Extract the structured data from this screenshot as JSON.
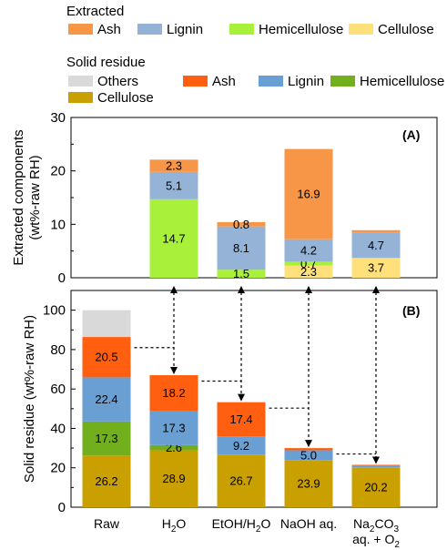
{
  "legends": [
    {
      "title": "Extracted",
      "items": [
        {
          "label": "Ash",
          "color": "#F79646"
        },
        {
          "label": "Lignin",
          "color": "#95B3D7"
        },
        {
          "label": "Hemicellulose",
          "color": "#A9F03A"
        },
        {
          "label": "Cellulose",
          "color": "#FFE07A"
        }
      ]
    },
    {
      "title": "Solid residue",
      "items": [
        {
          "label": "Others",
          "color": "#D9D9D9"
        },
        {
          "label": "Ash",
          "color": "#FF5F0F"
        },
        {
          "label": "Lignin",
          "color": "#6A9FD3"
        },
        {
          "label": "Hemicellulose",
          "color": "#71AF1C"
        },
        {
          "label": "Cellulose",
          "color": "#C9A000"
        }
      ]
    }
  ],
  "chart_data": [
    {
      "type": "bar",
      "stacked": true,
      "panel_label": "(A)",
      "ylabel": "Extracted components\n(wt%-raw RH)",
      "ylim": [
        0,
        30
      ],
      "yticks": [
        0,
        10,
        20,
        30
      ],
      "categories": [
        "Raw",
        "H2O",
        "EtOH/H2O",
        "NaOH aq.",
        "Na2CO3 aq. + O2"
      ],
      "series": [
        {
          "name": "Cellulose",
          "color": "#FFE07A",
          "values": [
            0,
            0,
            0,
            2.3,
            3.7
          ],
          "labels": [
            "",
            "",
            "",
            "2.3",
            "3.7"
          ]
        },
        {
          "name": "Hemicellulose",
          "color": "#A9F03A",
          "values": [
            0,
            14.7,
            1.5,
            0.7,
            0
          ],
          "labels": [
            "",
            "14.7",
            "1.5",
            "0.7",
            ""
          ]
        },
        {
          "name": "Lignin",
          "color": "#95B3D7",
          "values": [
            0,
            5.1,
            8.1,
            4.2,
            4.7
          ],
          "labels": [
            "",
            "5.1",
            "8.1",
            "4.2",
            "4.7"
          ]
        },
        {
          "name": "Ash",
          "color": "#F79646",
          "values": [
            0,
            2.3,
            0.8,
            16.9,
            0.5
          ],
          "labels": [
            "",
            "2.3",
            "0.8",
            "16.9",
            ""
          ]
        }
      ]
    },
    {
      "type": "bar",
      "stacked": true,
      "panel_label": "(B)",
      "ylabel": "Solid residue (wt%-raw RH)",
      "ylim": [
        0,
        110
      ],
      "yticks": [
        0,
        20,
        40,
        60,
        80,
        100
      ],
      "categories": [
        "Raw",
        "H2O",
        "EtOH/H2O",
        "NaOH aq.",
        "Na2CO3 aq. + O2"
      ],
      "series": [
        {
          "name": "Cellulose",
          "color": "#C9A000",
          "values": [
            26.2,
            28.9,
            26.7,
            23.9,
            20.2
          ],
          "labels": [
            "26.2",
            "28.9",
            "26.7",
            "23.9",
            "20.2"
          ]
        },
        {
          "name": "Hemicellulose",
          "color": "#71AF1C",
          "values": [
            17.3,
            2.6,
            0,
            0,
            0
          ],
          "labels": [
            "17.3",
            "2.6",
            "",
            "",
            ""
          ]
        },
        {
          "name": "Lignin",
          "color": "#6A9FD3",
          "values": [
            22.4,
            17.3,
            9.2,
            5.0,
            0.9
          ],
          "labels": [
            "22.4",
            "17.3",
            "9.2",
            "5.0",
            ""
          ]
        },
        {
          "name": "Ash",
          "color": "#FF5F0F",
          "values": [
            20.5,
            18.2,
            17.4,
            1.1,
            0.4
          ],
          "labels": [
            "20.5",
            "18.2",
            "17.4",
            "",
            ""
          ]
        },
        {
          "name": "Others",
          "color": "#D9D9D9",
          "values": [
            13.6,
            0,
            0,
            0,
            0
          ],
          "labels": [
            "",
            "",
            "",
            "",
            ""
          ]
        }
      ]
    }
  ],
  "x_tick_labels": [
    {
      "main": "Raw",
      "sub": "",
      "suffix": "",
      "line2": ""
    },
    {
      "main": "H",
      "sub": "2",
      "suffix": "O",
      "line2": ""
    },
    {
      "main": "EtOH/H",
      "sub": "2",
      "suffix": "O",
      "line2": ""
    },
    {
      "main": "NaOH aq.",
      "sub": "",
      "suffix": "",
      "line2": ""
    },
    {
      "main": "Na",
      "sub": "2",
      "suffix": "CO",
      "sub2": "3",
      "line2": "aq. + O",
      "line2_sub": "2"
    }
  ]
}
